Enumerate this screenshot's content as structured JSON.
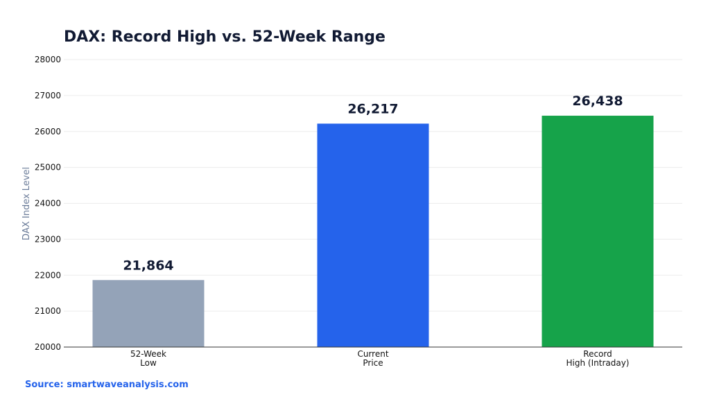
{
  "chart_data": {
    "type": "bar",
    "title": "DAX: Record High vs. 52-Week Range",
    "xlabel": "",
    "ylabel": "DAX Index Level",
    "categories": [
      [
        "52-Week",
        "Low"
      ],
      [
        "Current",
        "Price"
      ],
      [
        "Record",
        "High (Intraday)"
      ]
    ],
    "values": [
      21864,
      26217,
      26438
    ],
    "value_labels": [
      "21,864",
      "26,217",
      "26,438"
    ],
    "colors": [
      "#94a3b8",
      "#2563eb",
      "#16a34a"
    ],
    "ylim": [
      20000,
      28000
    ],
    "yticks": [
      20000,
      21000,
      22000,
      23000,
      24000,
      25000,
      26000,
      27000,
      28000
    ],
    "grid": true,
    "legend": "none"
  },
  "source": {
    "text": "Source: smartwaveanalysis.com",
    "color": "#2563eb"
  }
}
